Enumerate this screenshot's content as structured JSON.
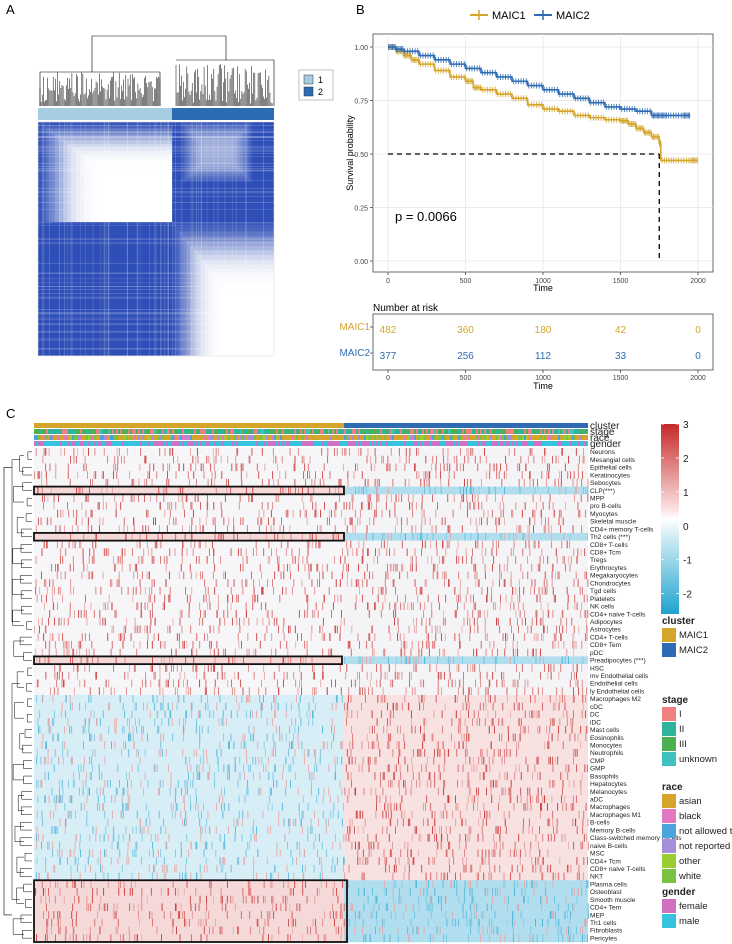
{
  "panels": {
    "a": "A",
    "b": "B",
    "c": "C"
  },
  "chart_data": [
    {
      "type": "heatmap",
      "id": "consensus-matrix",
      "legend": [
        "1",
        "2"
      ],
      "colors": {
        "cluster1": "#a6cee3",
        "cluster2": "#2a6db3",
        "fill": "#2e4fb8",
        "empty": "#ffffff"
      }
    },
    {
      "type": "line",
      "id": "km-survival",
      "xlabel": "Time",
      "ylabel": "Survival probability",
      "xlim": [
        0,
        2000
      ],
      "ylim": [
        0,
        1
      ],
      "xticks": [
        "0",
        "500",
        "1000",
        "1500",
        "2000"
      ],
      "yticks": [
        "0.00",
        "0.25",
        "0.50",
        "0.75",
        "1.00"
      ],
      "pvalue": "p = 0.0066",
      "median": {
        "time": 1750,
        "prob": 0.5
      },
      "series": [
        {
          "name": "MAIC1",
          "color": "#d4a52a",
          "x": [
            0,
            50,
            100,
            150,
            200,
            300,
            400,
            500,
            550,
            600,
            700,
            800,
            900,
            1000,
            1100,
            1200,
            1300,
            1400,
            1500,
            1550,
            1600,
            1650,
            1700,
            1750,
            1760,
            1850,
            1950,
            2000
          ],
          "y": [
            1.0,
            0.98,
            0.96,
            0.94,
            0.92,
            0.89,
            0.86,
            0.84,
            0.81,
            0.8,
            0.78,
            0.76,
            0.73,
            0.71,
            0.7,
            0.68,
            0.67,
            0.66,
            0.655,
            0.64,
            0.62,
            0.6,
            0.58,
            0.55,
            0.47,
            0.47,
            0.47,
            0.47
          ]
        },
        {
          "name": "MAIC2",
          "color": "#2e6bb3",
          "x": [
            0,
            50,
            100,
            200,
            300,
            400,
            500,
            600,
            700,
            800,
            900,
            1000,
            1100,
            1200,
            1300,
            1400,
            1500,
            1600,
            1700,
            1750,
            1800,
            1900,
            1950
          ],
          "y": [
            1.0,
            0.99,
            0.98,
            0.96,
            0.94,
            0.92,
            0.9,
            0.88,
            0.86,
            0.84,
            0.82,
            0.8,
            0.78,
            0.76,
            0.74,
            0.72,
            0.71,
            0.7,
            0.68,
            0.68,
            0.68,
            0.68,
            0.68
          ]
        }
      ],
      "risk_table": {
        "title": "Number at risk",
        "times": [
          "0",
          "500",
          "1000",
          "1500",
          "2000"
        ],
        "rows": [
          {
            "name": "MAIC1",
            "values": [
              "482",
              "360",
              "180",
              "42",
              "0"
            ]
          },
          {
            "name": "MAIC2",
            "values": [
              "377",
              "256",
              "112",
              "33",
              "0"
            ]
          }
        ],
        "xlabel": "Time"
      }
    },
    {
      "type": "heatmap",
      "id": "cell-type-heatmap",
      "annotation_tracks": [
        "cluster",
        "stage",
        "race",
        "gender"
      ],
      "rows": [
        "Neurons",
        "Mesangial cells",
        "Epithelial cells",
        "Keratinocytes",
        "Sebocytes",
        "CLP(***)",
        "MPP",
        "pro B-cells",
        "Myocytes",
        "Skeletal muscle",
        "CD4+ memory T-cells",
        "Th2 cells (***)",
        "CD8+ T-cells",
        "CD8+ Tcm",
        "Tregs",
        "Erythrocytes",
        "Megakaryocytes",
        "Chondrocytes",
        "Tgd cells",
        "Platelets",
        "NK cells",
        "CD4+ naive T-cells",
        "Adipocytes",
        "Astrocytes",
        "CD4+ T-cells",
        "CD8+ Tem",
        "pDC",
        "Preadipocytes (***)",
        "HSC",
        "mv Endothelial cells",
        "Endothelial cells",
        "ly Endothelial cells",
        "Macrophages M2",
        "cDC",
        "DC",
        "iDC",
        "Mast cells",
        "Eosinophils",
        "Monocytes",
        "Neutrophils",
        "CMP",
        "GMP",
        "Basophils",
        "Hepatocytes",
        "Melanocytes",
        "aDC",
        "Macrophages",
        "Macrophages M1",
        "B-cells",
        "Memory B-cells",
        "Class-switched memory B-cells",
        "naive B-cells",
        "MSC",
        "CD4+ Tcm",
        "CD8+ naive T-cells",
        "NKT",
        "Plasma cells",
        "Osteoblast",
        "Smooth muscle",
        "CD4+ Tem",
        "MEP",
        "Th1 cells",
        "Fibroblasts",
        "Pericytes"
      ],
      "colorbar": {
        "ticks": [
          "3",
          "2",
          "1",
          "0",
          "-1",
          "-2"
        ],
        "range": [
          -2.6,
          3
        ]
      },
      "highlight_boxes": [
        "CLP(***)",
        "Th2 cells (***)",
        "Preadipocytes (***)",
        "Plasma cells – Pericytes"
      ],
      "legends": {
        "cluster": {
          "title": "cluster",
          "items": [
            {
              "label": "MAIC1",
              "color": "#d4a52a"
            },
            {
              "label": "MAIC2",
              "color": "#2e6bb3"
            }
          ]
        },
        "stage": {
          "title": "stage",
          "items": [
            {
              "label": "I",
              "color": "#f08080"
            },
            {
              "label": "II",
              "color": "#2fb39a"
            },
            {
              "label": "III",
              "color": "#4caf50"
            },
            {
              "label": "unknown",
              "color": "#3fc1c0"
            }
          ]
        },
        "race": {
          "title": "race",
          "items": [
            {
              "label": "asian",
              "color": "#d4a52a"
            },
            {
              "label": "black",
              "color": "#e377c2"
            },
            {
              "label": "not allowed to collect",
              "color": "#4aa3df"
            },
            {
              "label": "not reported",
              "color": "#a58fd8"
            },
            {
              "label": "other",
              "color": "#9acd32"
            },
            {
              "label": "white",
              "color": "#7cc242"
            }
          ]
        },
        "gender": {
          "title": "gender",
          "items": [
            {
              "label": "female",
              "color": "#d070c0"
            },
            {
              "label": "male",
              "color": "#36c3e0"
            }
          ]
        }
      }
    }
  ]
}
